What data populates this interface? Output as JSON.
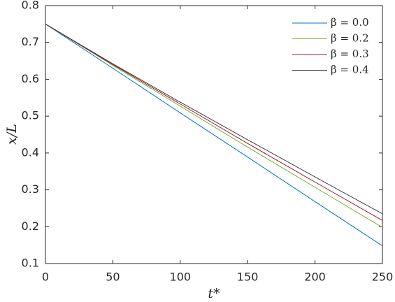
{
  "chart_data": {
    "type": "line",
    "xlabel": "t*",
    "ylabel": "x/L",
    "x": [
      0,
      50,
      100,
      150,
      200,
      250
    ],
    "series": [
      {
        "name": "β = 0.0",
        "color": "#0072bd",
        "values": [
          0.75,
          0.63,
          0.509,
          0.389,
          0.268,
          0.148
        ]
      },
      {
        "name": "β = 0.2",
        "color": "#77ac30",
        "values": [
          0.75,
          0.638,
          0.527,
          0.416,
          0.307,
          0.198
        ]
      },
      {
        "name": "β = 0.3",
        "color": "#a2142f",
        "values": [
          0.75,
          0.64,
          0.533,
          0.426,
          0.321,
          0.217
        ]
      },
      {
        "name": "β = 0.4",
        "color": "#3d3d3d",
        "values": [
          0.75,
          0.642,
          0.538,
          0.436,
          0.335,
          0.235
        ]
      }
    ],
    "xlim": [
      0,
      250
    ],
    "xticks": [
      0,
      50,
      100,
      150,
      200,
      250
    ],
    "ylim": [
      0.1,
      0.8
    ],
    "yticks": [
      0.1,
      0.2,
      0.3,
      0.4,
      0.5,
      0.6,
      0.7,
      0.8
    ],
    "grid": false,
    "legend": "upper right"
  }
}
